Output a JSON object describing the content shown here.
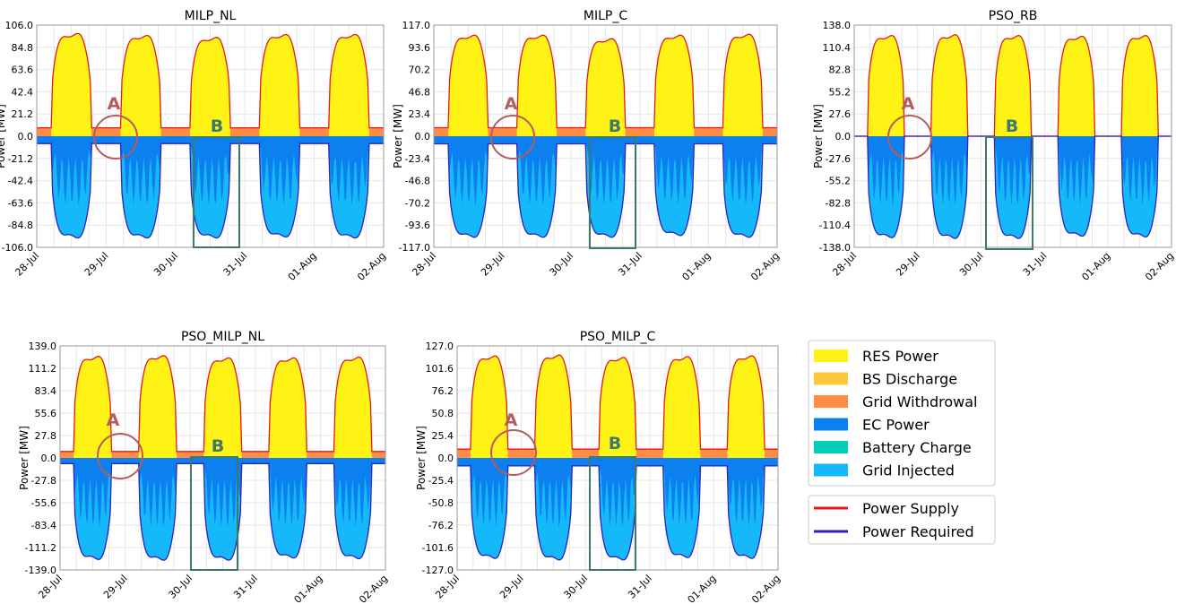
{
  "figure": {
    "legend": {
      "fill_items": [
        {
          "label": "RES Power",
          "color": "#fff215"
        },
        {
          "label": "BS Discharge",
          "color": "#ffc83c"
        },
        {
          "label": "Grid Withdrowal",
          "color": "#ff8c42"
        },
        {
          "label": "EC Power",
          "color": "#0d80f0"
        },
        {
          "label": "Battery Charge",
          "color": "#00cfb6"
        },
        {
          "label": "Grid Injected",
          "color": "#15b8f8"
        }
      ],
      "line_items": [
        {
          "label": "Power Supply",
          "color": "#e31a1c"
        },
        {
          "label": "Power Required",
          "color": "#2f1fbf"
        }
      ]
    },
    "annotation_labels": {
      "a": "A",
      "b": "B"
    },
    "annotation_colors": {
      "a": "#b45c5c",
      "b": "#3d7a6c"
    }
  },
  "chart_data": [
    {
      "type": "area",
      "title": "MILP_NL",
      "ylabel": "Power [MW]",
      "ylim": [
        -106.0,
        106.0
      ],
      "yticks": [
        "106.0",
        "84.8",
        "63.6",
        "42.4",
        "21.2",
        "0.0",
        "-21.2",
        "-42.4",
        "-63.6",
        "-84.8",
        "-106.0"
      ],
      "xticks": [
        "28-Jul",
        "29-Jul",
        "30-Jul",
        "31-Jul",
        "01-Aug",
        "02-Aug"
      ],
      "day_peaks_supply": [
        105,
        103,
        101,
        104,
        104
      ],
      "day_peaks_required": [
        -104,
        -104,
        -104,
        -103,
        -104
      ],
      "baseline_supply": 8,
      "baseline_required": -7
    },
    {
      "type": "area",
      "title": "MILP_C",
      "ylabel": "Power [MW]",
      "ylim": [
        -117.0,
        117.0
      ],
      "yticks": [
        "117.0",
        "93.6",
        "70.2",
        "46.8",
        "23.4",
        "0.0",
        "-23.4",
        "-46.8",
        "-70.2",
        "-93.6",
        "-117.0"
      ],
      "xticks": [
        "28-Jul",
        "29-Jul",
        "30-Jul",
        "31-Jul",
        "01-Aug",
        "02-Aug"
      ],
      "day_peaks_supply": [
        114,
        114,
        110,
        114,
        115
      ],
      "day_peaks_required": [
        -114,
        -114,
        -114,
        -112,
        -114
      ],
      "baseline_supply": 9,
      "baseline_required": -8
    },
    {
      "type": "area",
      "title": "PSO_RB",
      "ylabel": "Power [MW]",
      "ylim": [
        -138.0,
        138.0
      ],
      "yticks": [
        "138.0",
        "110.4",
        "82.8",
        "55.2",
        "27.6",
        "0.0",
        "-27.6",
        "-55.2",
        "-82.8",
        "-110.4",
        "-138.0"
      ],
      "xticks": [
        "28-Jul",
        "29-Jul",
        "30-Jul",
        "31-Jul",
        "01-Aug",
        "02-Aug"
      ],
      "day_peaks_supply": [
        134,
        135,
        134,
        133,
        134
      ],
      "day_peaks_required": [
        -135,
        -136,
        -136,
        -133,
        -134
      ],
      "baseline_supply": 0,
      "baseline_required": 0
    },
    {
      "type": "area",
      "title": "PSO_MILP_NL",
      "ylabel": "Power [MW]",
      "ylim": [
        -139.0,
        139.0
      ],
      "yticks": [
        "139.0",
        "111.2",
        "83.4",
        "55.6",
        "27.8",
        "0.0",
        "-27.8",
        "-55.6",
        "-83.4",
        "-111.2",
        "-139.0"
      ],
      "xticks": [
        "28-Jul",
        "29-Jul",
        "30-Jul",
        "31-Jul",
        "01-Aug",
        "02-Aug"
      ],
      "day_peaks_supply": [
        135,
        136,
        133,
        133,
        134
      ],
      "day_peaks_required": [
        -135,
        -136,
        -136,
        -133,
        -134
      ],
      "baseline_supply": 8,
      "baseline_required": -7
    },
    {
      "type": "area",
      "title": "PSO_MILP_C",
      "ylabel": "Power [MW]",
      "ylim": [
        -127.0,
        127.0
      ],
      "yticks": [
        "127.0",
        "101.6",
        "76.2",
        "50.8",
        "25.4",
        "0.0",
        "-25.4",
        "-50.8",
        "-76.2",
        "-101.6",
        "-127.0"
      ],
      "xticks": [
        "28-Jul",
        "29-Jul",
        "30-Jul",
        "31-Jul",
        "01-Aug",
        "02-Aug"
      ],
      "day_peaks_supply": [
        124,
        125,
        122,
        123,
        124
      ],
      "day_peaks_required": [
        -122,
        -124,
        -124,
        -121,
        -122
      ],
      "baseline_supply": 10,
      "baseline_required": -9
    }
  ]
}
